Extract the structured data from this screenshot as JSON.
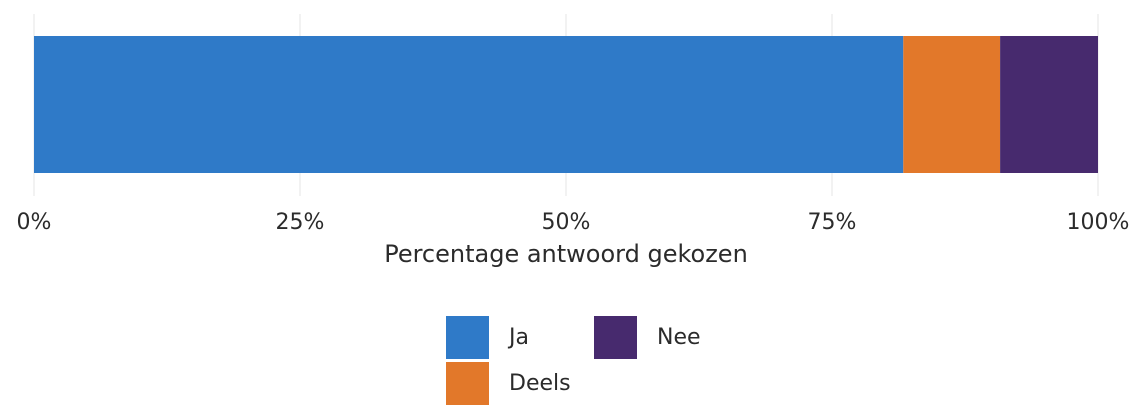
{
  "chart_data": {
    "type": "bar",
    "orientation": "horizontal",
    "stacked": true,
    "categories": [
      ""
    ],
    "series": [
      {
        "name": "Ja",
        "values": [
          81.7
        ],
        "color": "#2f7ac8"
      },
      {
        "name": "Deels",
        "values": [
          9.1
        ],
        "color": "#e2782a"
      },
      {
        "name": "Nee",
        "values": [
          9.2
        ],
        "color": "#472a6e"
      }
    ],
    "xlim": [
      0,
      100
    ],
    "x_ticks": [
      0,
      25,
      50,
      75,
      100
    ],
    "x_tick_labels": [
      "0%",
      "25%",
      "50%",
      "75%",
      "100%"
    ],
    "xlabel": "Percentage antwoord gekozen",
    "grid": true,
    "legend_position": "bottom"
  }
}
